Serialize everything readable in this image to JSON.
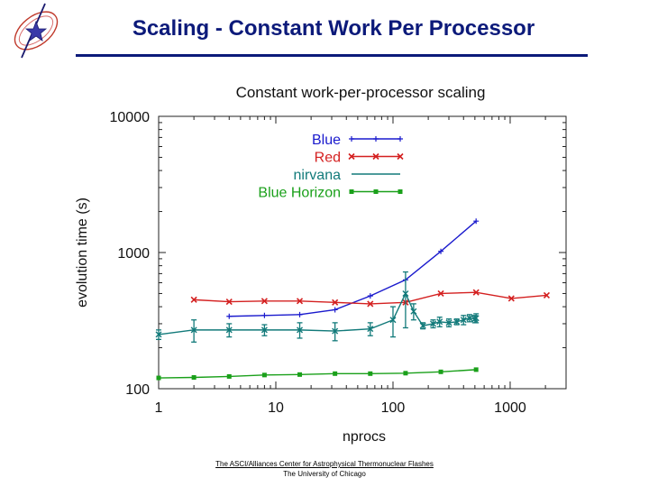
{
  "slide": {
    "title": "Scaling - Constant Work Per Processor",
    "footer_line1": "The ASCI/Alliances Center for Astrophysical Thermonuclear Flashes",
    "footer_line2": "The University of Chicago"
  },
  "colors": {
    "title": "#0c1a7a",
    "blue": "#1a1acd",
    "red": "#d42020",
    "nirvana": "#127a7a",
    "blue_horizon": "#1aa01a"
  },
  "chart_data": {
    "type": "line",
    "title": "Constant work-per-processor scaling",
    "xlabel": "nprocs",
    "ylabel": "evolution time (s)",
    "x_scale": "log",
    "y_scale": "log",
    "xlim": [
      1,
      3000
    ],
    "ylim": [
      100,
      10000
    ],
    "x_ticks": [
      1,
      10,
      100,
      1000
    ],
    "x_tick_labels": [
      "1",
      "10",
      "100",
      "1000"
    ],
    "y_ticks": [
      100,
      1000,
      10000
    ],
    "y_tick_labels": [
      "100",
      "1000",
      "10000"
    ],
    "legend_position": "top-right",
    "series": [
      {
        "name": "Blue",
        "color": "#1a1acd",
        "marker": "plus",
        "x": [
          4,
          8,
          16,
          32,
          64,
          128,
          256,
          512
        ],
        "y": [
          340,
          345,
          350,
          380,
          480,
          630,
          1020,
          1700
        ]
      },
      {
        "name": "Red",
        "color": "#d42020",
        "marker": "x",
        "x": [
          2,
          4,
          8,
          16,
          32,
          64,
          128,
          256,
          512,
          1024,
          2048
        ],
        "y": [
          450,
          435,
          440,
          440,
          430,
          420,
          430,
          500,
          510,
          460,
          485
        ]
      },
      {
        "name": "nirvana",
        "color": "#127a7a",
        "marker": "errorbar",
        "x": [
          1,
          2,
          4,
          8,
          16,
          32,
          64,
          100,
          128,
          150,
          180,
          220,
          250,
          300,
          350,
          400,
          450,
          500,
          512
        ],
        "y": [
          250,
          270,
          270,
          270,
          270,
          265,
          275,
          320,
          500,
          370,
          290,
          300,
          310,
          305,
          310,
          320,
          330,
          325,
          330
        ],
        "err": [
          20,
          50,
          30,
          25,
          35,
          40,
          30,
          80,
          220,
          50,
          15,
          20,
          25,
          20,
          15,
          25,
          20,
          20,
          25
        ]
      },
      {
        "name": "Blue Horizon",
        "color": "#1aa01a",
        "marker": "square",
        "x": [
          1,
          2,
          4,
          8,
          16,
          32,
          64,
          128,
          256,
          512
        ],
        "y": [
          120,
          121,
          123,
          126,
          127,
          129,
          129,
          130,
          133,
          138
        ]
      }
    ]
  }
}
